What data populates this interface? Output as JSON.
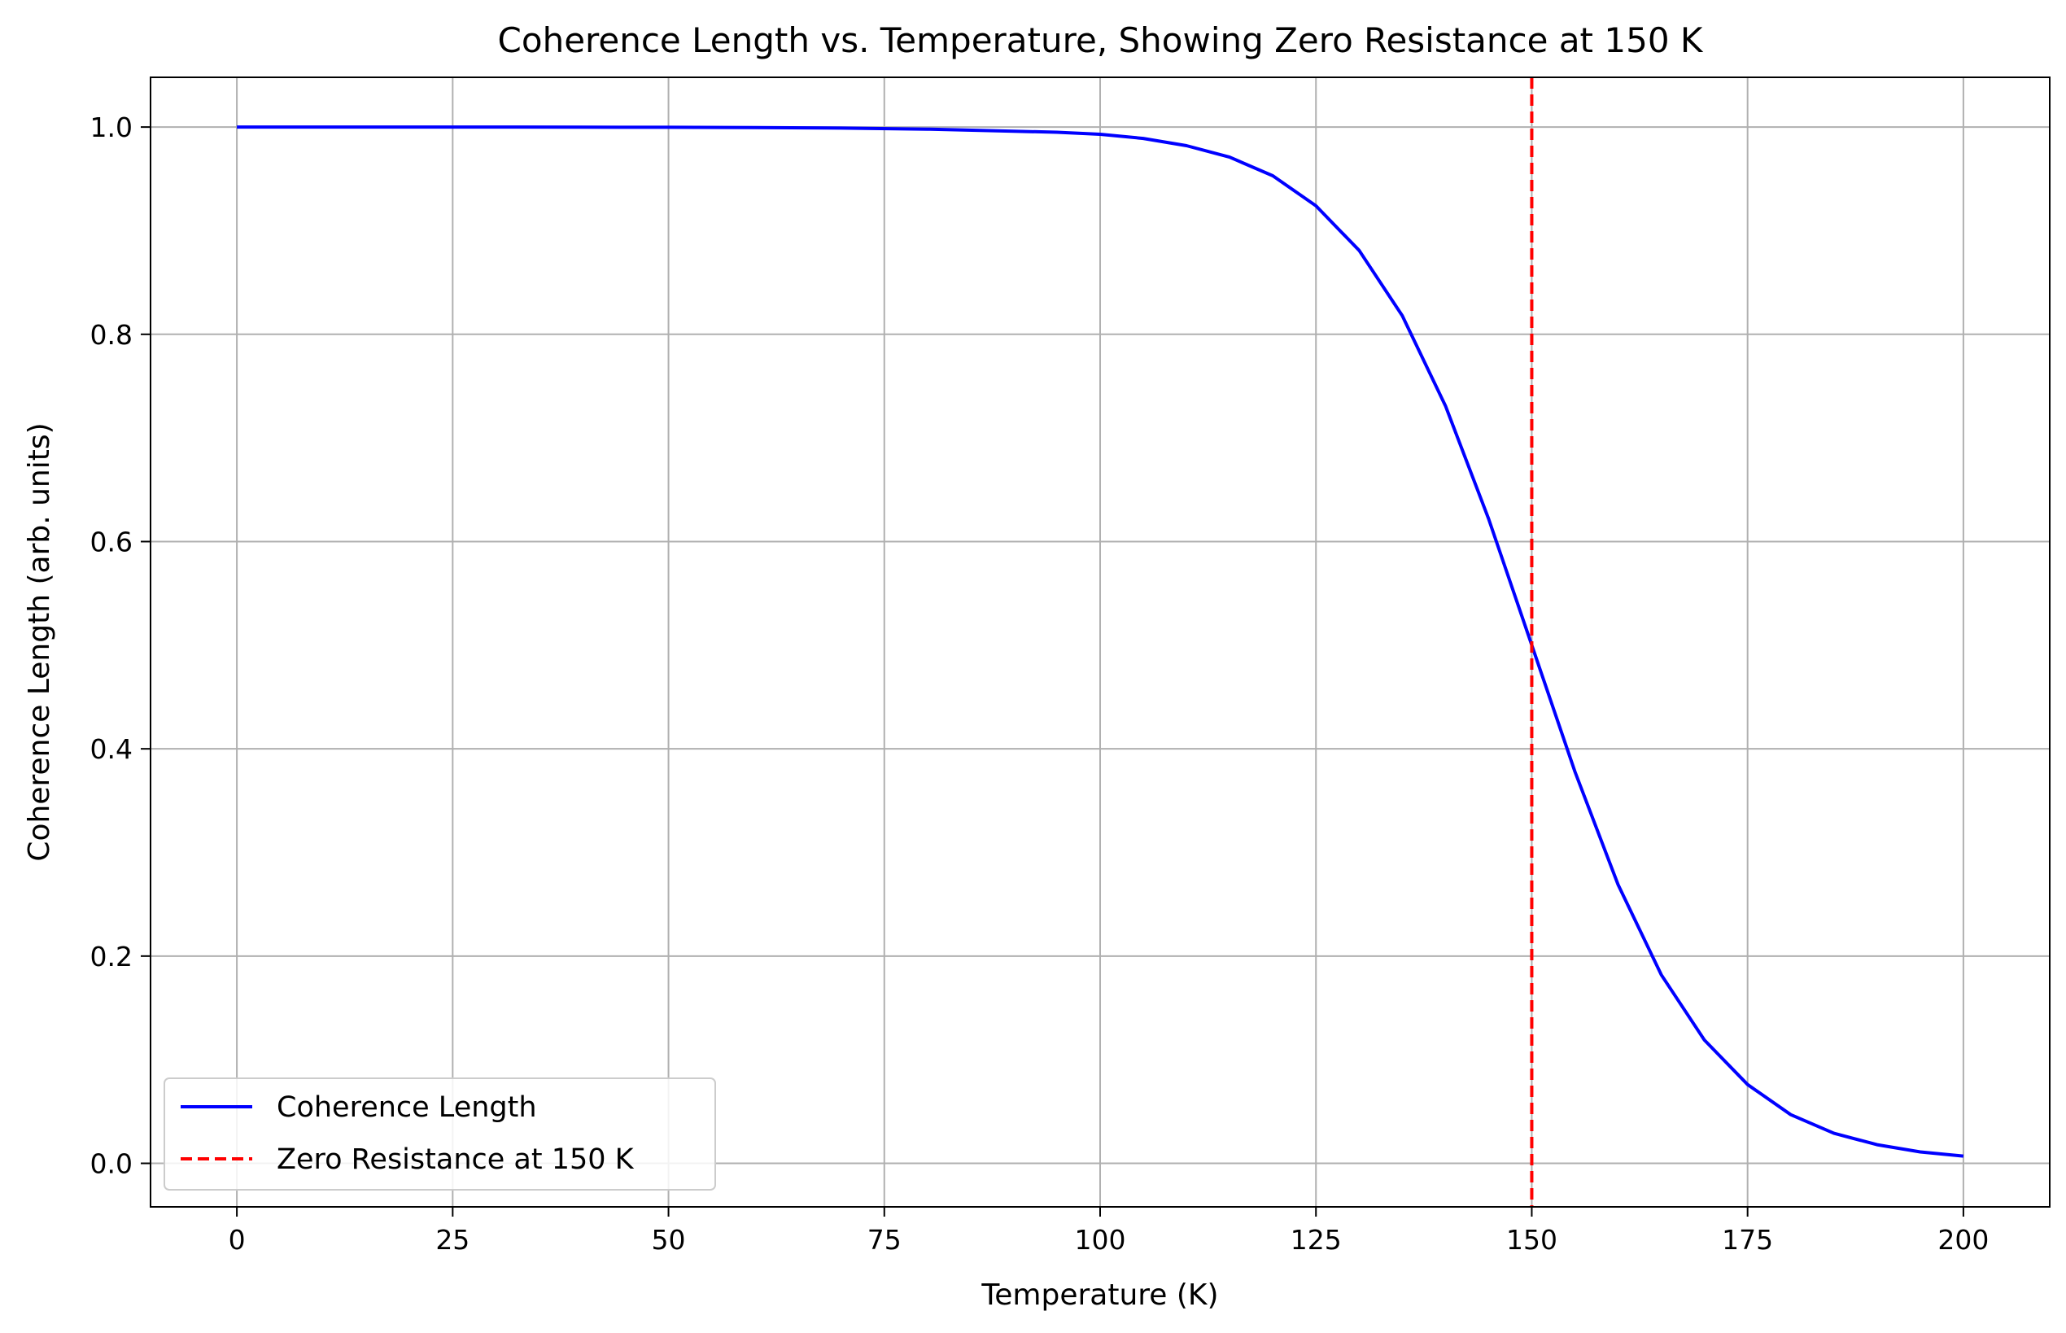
{
  "chart_data": {
    "type": "line",
    "title": "Coherence Length vs. Temperature, Showing Zero Resistance at 150 K",
    "xlabel": "Temperature (K)",
    "ylabel": "Coherence Length (arb. units)",
    "xlim": [
      -10,
      210
    ],
    "ylim": [
      -0.042,
      1.048
    ],
    "xticks": [
      0,
      25,
      50,
      75,
      100,
      125,
      150,
      175,
      200
    ],
    "xtick_labels": [
      "0",
      "25",
      "50",
      "75",
      "100",
      "125",
      "150",
      "175",
      "200"
    ],
    "yticks": [
      0.0,
      0.2,
      0.4,
      0.6,
      0.8,
      1.0
    ],
    "ytick_labels": [
      "0.0",
      "0.2",
      "0.4",
      "0.6",
      "0.8",
      "1.0"
    ],
    "grid": true,
    "legend_position": "lower-left",
    "series": [
      {
        "name": "Coherence Length",
        "color": "#0000ff",
        "style": "solid",
        "x": [
          0,
          10,
          20,
          30,
          40,
          50,
          60,
          70,
          80,
          90,
          95,
          100,
          105,
          110,
          115,
          120,
          125,
          130,
          135,
          140,
          145,
          150,
          155,
          160,
          165,
          170,
          175,
          180,
          185,
          190,
          195,
          200
        ],
        "y": [
          1.0,
          1.0,
          1.0,
          1.0,
          0.9999,
          0.9998,
          0.9995,
          0.999,
          0.998,
          0.996,
          0.995,
          0.993,
          0.989,
          0.982,
          0.971,
          0.953,
          0.924,
          0.881,
          0.818,
          0.731,
          0.622,
          0.5,
          0.378,
          0.269,
          0.182,
          0.119,
          0.076,
          0.047,
          0.029,
          0.018,
          0.011,
          0.007
        ]
      }
    ],
    "vlines": [
      {
        "name": "Zero Resistance at 150 K",
        "x": 150,
        "color": "#ff0000",
        "style": "dashed"
      }
    ]
  }
}
